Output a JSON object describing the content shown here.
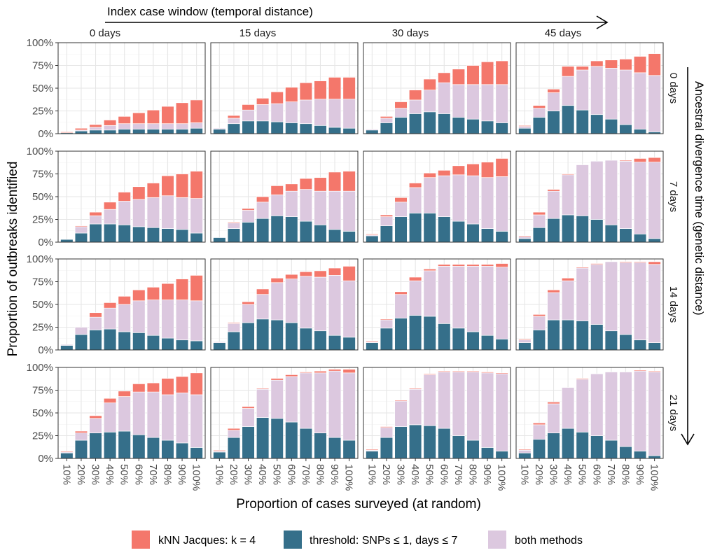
{
  "chart_data": {
    "type": "bar",
    "stacked": true,
    "top_annotation": "Index case window (temporal distance)",
    "right_annotation": "Ancestral divergence time (genetic distance)",
    "xlabel": "Proportion of cases surveyed (at random)",
    "ylabel": "Proportion of outbreaks identified",
    "x_ticks": [
      "10%",
      "20%",
      "30%",
      "40%",
      "50%",
      "60%",
      "70%",
      "80%",
      "90%",
      "100%"
    ],
    "y_ticks": [
      "0%",
      "25%",
      "50%",
      "75%",
      "100%"
    ],
    "ylim": [
      0,
      100
    ],
    "columns": [
      "0 days",
      "15 days",
      "30 days",
      "45 days"
    ],
    "rows": [
      "0 days",
      "7 days",
      "14 days",
      "21 days"
    ],
    "colors": {
      "knn": "#f4776b",
      "threshold": "#356f8a",
      "both": "#dcc8df"
    },
    "legend": [
      {
        "key": "knn",
        "label": "kNN Jacques: k = 4"
      },
      {
        "key": "threshold",
        "label": "threshold: SNPs ≤ 1, days ≤ 7"
      },
      {
        "key": "both",
        "label": "both methods"
      }
    ],
    "series_note": "each panel: threshold (bottom) / both methods / kNN (top) values in % per x tick",
    "panels": [
      [
        {
          "threshold": [
            1,
            3,
            4,
            4,
            5,
            5,
            5,
            5,
            5,
            6
          ],
          "both": [
            0,
            1,
            3,
            5,
            6,
            6,
            6,
            6,
            6,
            6
          ],
          "knn": [
            1,
            2,
            3,
            6,
            8,
            12,
            15,
            19,
            23,
            25
          ]
        },
        {
          "threshold": [
            5,
            11,
            14,
            14,
            13,
            12,
            11,
            9,
            7,
            6
          ],
          "both": [
            1,
            6,
            12,
            18,
            20,
            23,
            26,
            29,
            31,
            32
          ],
          "knn": [
            0,
            3,
            6,
            7,
            13,
            16,
            19,
            20,
            24,
            24
          ]
        },
        {
          "threshold": [
            4,
            12,
            18,
            22,
            24,
            22,
            18,
            16,
            14,
            12
          ],
          "both": [
            1,
            5,
            10,
            15,
            24,
            34,
            36,
            38,
            40,
            42
          ],
          "knn": [
            0,
            2,
            7,
            11,
            12,
            11,
            17,
            21,
            25,
            26
          ]
        },
        {
          "threshold": [
            6,
            18,
            25,
            31,
            26,
            21,
            16,
            10,
            5,
            2
          ],
          "both": [
            2,
            10,
            20,
            32,
            44,
            53,
            56,
            60,
            62,
            62
          ],
          "knn": [
            1,
            3,
            4,
            11,
            4,
            6,
            9,
            12,
            18,
            24
          ]
        }
      ],
      [
        {
          "threshold": [
            3,
            10,
            20,
            20,
            19,
            17,
            16,
            15,
            14,
            10
          ],
          "both": [
            0,
            7,
            9,
            16,
            26,
            30,
            33,
            36,
            35,
            38
          ],
          "knn": [
            0,
            1,
            4,
            8,
            10,
            14,
            16,
            22,
            26,
            30
          ]
        },
        {
          "threshold": [
            5,
            15,
            22,
            26,
            29,
            28,
            23,
            19,
            14,
            12
          ],
          "both": [
            0,
            6,
            13,
            18,
            23,
            28,
            35,
            37,
            42,
            44
          ],
          "knn": [
            0,
            1,
            2,
            6,
            10,
            8,
            12,
            15,
            21,
            22
          ]
        },
        {
          "threshold": [
            7,
            18,
            28,
            32,
            32,
            28,
            23,
            20,
            15,
            12
          ],
          "both": [
            1,
            10,
            16,
            28,
            39,
            45,
            51,
            53,
            56,
            60
          ],
          "knn": [
            1,
            2,
            5,
            5,
            5,
            6,
            10,
            13,
            17,
            20
          ]
        },
        {
          "threshold": [
            4,
            16,
            26,
            30,
            29,
            25,
            19,
            15,
            9,
            4
          ],
          "both": [
            2,
            14,
            30,
            44,
            56,
            64,
            71,
            74,
            79,
            84
          ],
          "knn": [
            1,
            3,
            2,
            1,
            0,
            0,
            0,
            1,
            4,
            5
          ]
        }
      ],
      [
        {
          "threshold": [
            5,
            17,
            22,
            23,
            20,
            19,
            16,
            13,
            11,
            10
          ],
          "both": [
            1,
            8,
            14,
            23,
            30,
            35,
            39,
            42,
            44,
            44
          ],
          "knn": [
            0,
            0,
            5,
            6,
            9,
            12,
            14,
            18,
            23,
            28
          ]
        },
        {
          "threshold": [
            8,
            20,
            30,
            34,
            33,
            30,
            24,
            21,
            16,
            14
          ],
          "both": [
            1,
            9,
            20,
            27,
            41,
            48,
            57,
            59,
            66,
            62
          ],
          "knn": [
            0,
            1,
            3,
            6,
            5,
            5,
            5,
            7,
            8,
            16
          ]
        },
        {
          "threshold": [
            8,
            24,
            35,
            38,
            37,
            29,
            24,
            20,
            16,
            12
          ],
          "both": [
            1,
            9,
            26,
            38,
            50,
            63,
            68,
            72,
            76,
            79
          ],
          "knn": [
            1,
            1,
            3,
            4,
            2,
            2,
            2,
            2,
            2,
            4
          ]
        },
        {
          "threshold": [
            8,
            22,
            33,
            33,
            32,
            28,
            21,
            17,
            11,
            8
          ],
          "both": [
            3,
            15,
            30,
            43,
            58,
            66,
            76,
            79,
            85,
            86
          ],
          "knn": [
            1,
            2,
            3,
            3,
            1,
            1,
            0,
            1,
            1,
            3
          ]
        }
      ],
      [
        {
          "threshold": [
            6,
            20,
            28,
            29,
            30,
            26,
            23,
            20,
            17,
            12
          ],
          "both": [
            1,
            8,
            16,
            32,
            38,
            47,
            50,
            50,
            55,
            58
          ],
          "knn": [
            1,
            2,
            3,
            5,
            6,
            9,
            10,
            18,
            18,
            24
          ]
        },
        {
          "threshold": [
            7,
            23,
            35,
            45,
            44,
            40,
            33,
            28,
            23,
            20
          ],
          "both": [
            1,
            8,
            20,
            31,
            42,
            50,
            61,
            66,
            73,
            74
          ],
          "knn": [
            1,
            2,
            2,
            1,
            2,
            2,
            1,
            2,
            2,
            4
          ]
        },
        {
          "threshold": [
            8,
            23,
            35,
            37,
            36,
            33,
            25,
            20,
            12,
            8
          ],
          "both": [
            1,
            11,
            28,
            39,
            56,
            62,
            70,
            75,
            82,
            85
          ],
          "knn": [
            1,
            1,
            1,
            1,
            1,
            1,
            1,
            1,
            1,
            1
          ]
        },
        {
          "threshold": [
            6,
            21,
            28,
            33,
            29,
            25,
            20,
            13,
            8,
            3
          ],
          "both": [
            3,
            16,
            32,
            45,
            58,
            68,
            75,
            82,
            88,
            92
          ],
          "knn": [
            1,
            2,
            2,
            0,
            1,
            0,
            0,
            0,
            1,
            1
          ]
        }
      ]
    ]
  }
}
